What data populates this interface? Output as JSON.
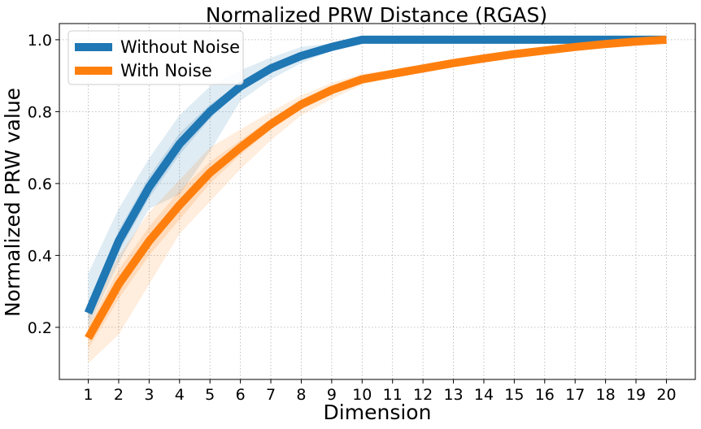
{
  "chart_data": {
    "type": "line",
    "title": "Normalized PRW Distance (RGAS)",
    "xlabel": "Dimension",
    "ylabel": "Normalized PRW value",
    "x": [
      1,
      2,
      3,
      4,
      5,
      6,
      7,
      8,
      9,
      10,
      11,
      12,
      13,
      14,
      15,
      16,
      17,
      18,
      19,
      20
    ],
    "xlim": [
      0.05,
      20.95
    ],
    "ylim": [
      0.055,
      1.045
    ],
    "yticks": [
      "0.2",
      "0.4",
      "0.6",
      "0.8",
      "1.0"
    ],
    "grid": true,
    "legend_position": "top-left",
    "series": [
      {
        "name": "Without Noise",
        "color": "#1f77b4",
        "values": [
          0.24,
          0.44,
          0.59,
          0.71,
          0.8,
          0.87,
          0.92,
          0.955,
          0.98,
          1.0,
          1.0,
          1.0,
          1.0,
          1.0,
          1.0,
          1.0,
          1.0,
          1.0,
          1.0,
          1.0
        ],
        "band_inner_low": [
          0.22,
          0.41,
          0.56,
          0.68,
          0.78,
          0.86,
          0.91,
          0.945,
          0.975,
          1.0,
          1.0,
          1.0,
          1.0,
          1.0,
          1.0,
          1.0,
          1.0,
          1.0,
          1.0,
          1.0
        ],
        "band_inner_high": [
          0.27,
          0.47,
          0.62,
          0.74,
          0.82,
          0.88,
          0.93,
          0.965,
          0.985,
          1.0,
          1.0,
          1.0,
          1.0,
          1.0,
          1.0,
          1.0,
          1.0,
          1.0,
          1.0,
          1.0
        ],
        "band_outer_low": [
          0.2,
          0.38,
          0.53,
          0.57,
          0.69,
          0.83,
          0.89,
          0.935,
          0.97,
          1.0,
          1.0,
          1.0,
          1.0,
          1.0,
          1.0,
          1.0,
          1.0,
          1.0,
          1.0,
          1.0
        ],
        "band_outer_high": [
          0.35,
          0.53,
          0.67,
          0.79,
          0.87,
          0.915,
          0.95,
          0.98,
          0.99,
          1.0,
          1.0,
          1.0,
          1.0,
          1.0,
          1.0,
          1.0,
          1.0,
          1.0,
          1.0,
          1.0
        ]
      },
      {
        "name": "With Noise",
        "color": "#ff7f0e",
        "values": [
          0.17,
          0.32,
          0.44,
          0.54,
          0.63,
          0.7,
          0.765,
          0.82,
          0.86,
          0.89,
          0.905,
          0.92,
          0.935,
          0.948,
          0.96,
          0.97,
          0.98,
          0.988,
          0.995,
          1.0
        ],
        "band_inner_low": [
          0.14,
          0.28,
          0.4,
          0.5,
          0.6,
          0.68,
          0.75,
          0.81,
          0.85,
          0.883,
          0.9,
          0.915,
          0.93,
          0.944,
          0.957,
          0.968,
          0.978,
          0.987,
          0.994,
          1.0
        ],
        "band_inner_high": [
          0.2,
          0.36,
          0.48,
          0.58,
          0.66,
          0.72,
          0.78,
          0.83,
          0.87,
          0.897,
          0.91,
          0.925,
          0.94,
          0.952,
          0.963,
          0.972,
          0.982,
          0.99,
          0.996,
          1.0
        ],
        "band_outer_low": [
          0.1,
          0.18,
          0.32,
          0.46,
          0.55,
          0.64,
          0.72,
          0.79,
          0.835,
          0.875,
          0.895,
          0.91,
          0.925,
          0.94,
          0.953,
          0.965,
          0.975,
          0.985,
          0.993,
          1.0
        ],
        "band_outer_high": [
          0.24,
          0.4,
          0.52,
          0.61,
          0.7,
          0.75,
          0.8,
          0.845,
          0.88,
          0.905,
          0.917,
          0.93,
          0.944,
          0.956,
          0.966,
          0.975,
          0.984,
          0.991,
          0.997,
          1.0
        ]
      }
    ]
  }
}
